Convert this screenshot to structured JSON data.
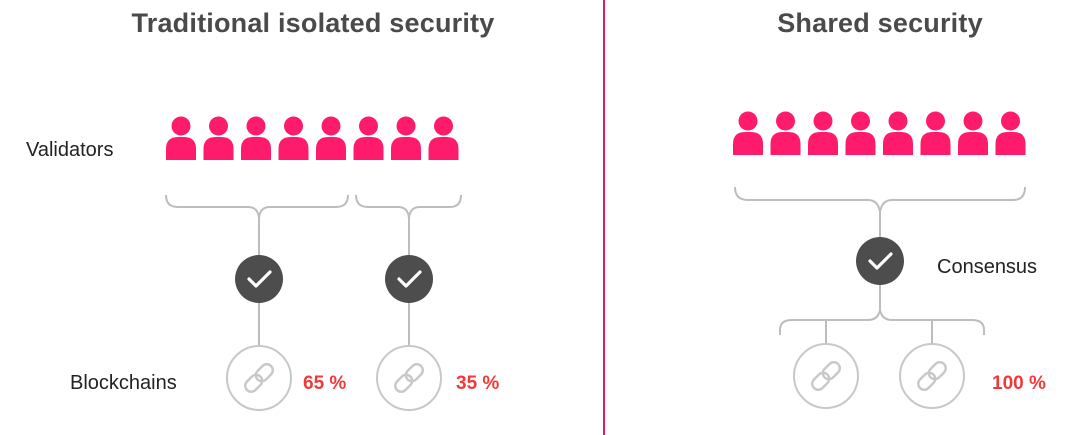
{
  "left": {
    "title": "Traditional isolated security",
    "validators_label": "Validators",
    "blockchains_label": "Blockchains",
    "chain_a_percent": "65 %",
    "chain_b_percent": "35 %",
    "validator_count_chain_a": 5,
    "validator_count_chain_b": 3
  },
  "right": {
    "title": "Shared security",
    "consensus_label": "Consensus",
    "percent": "100 %",
    "validator_count": 8,
    "blockchain_count": 2
  },
  "colors": {
    "validator": "#ff1b6b",
    "divider": "#e4166f",
    "percent": "#f03a3a",
    "check": "#4d4d4d",
    "outline": "#bdbdbd"
  },
  "icons": {
    "validator": "person-icon",
    "approval": "check-circle-icon",
    "blockchain": "chain-link-icon"
  }
}
